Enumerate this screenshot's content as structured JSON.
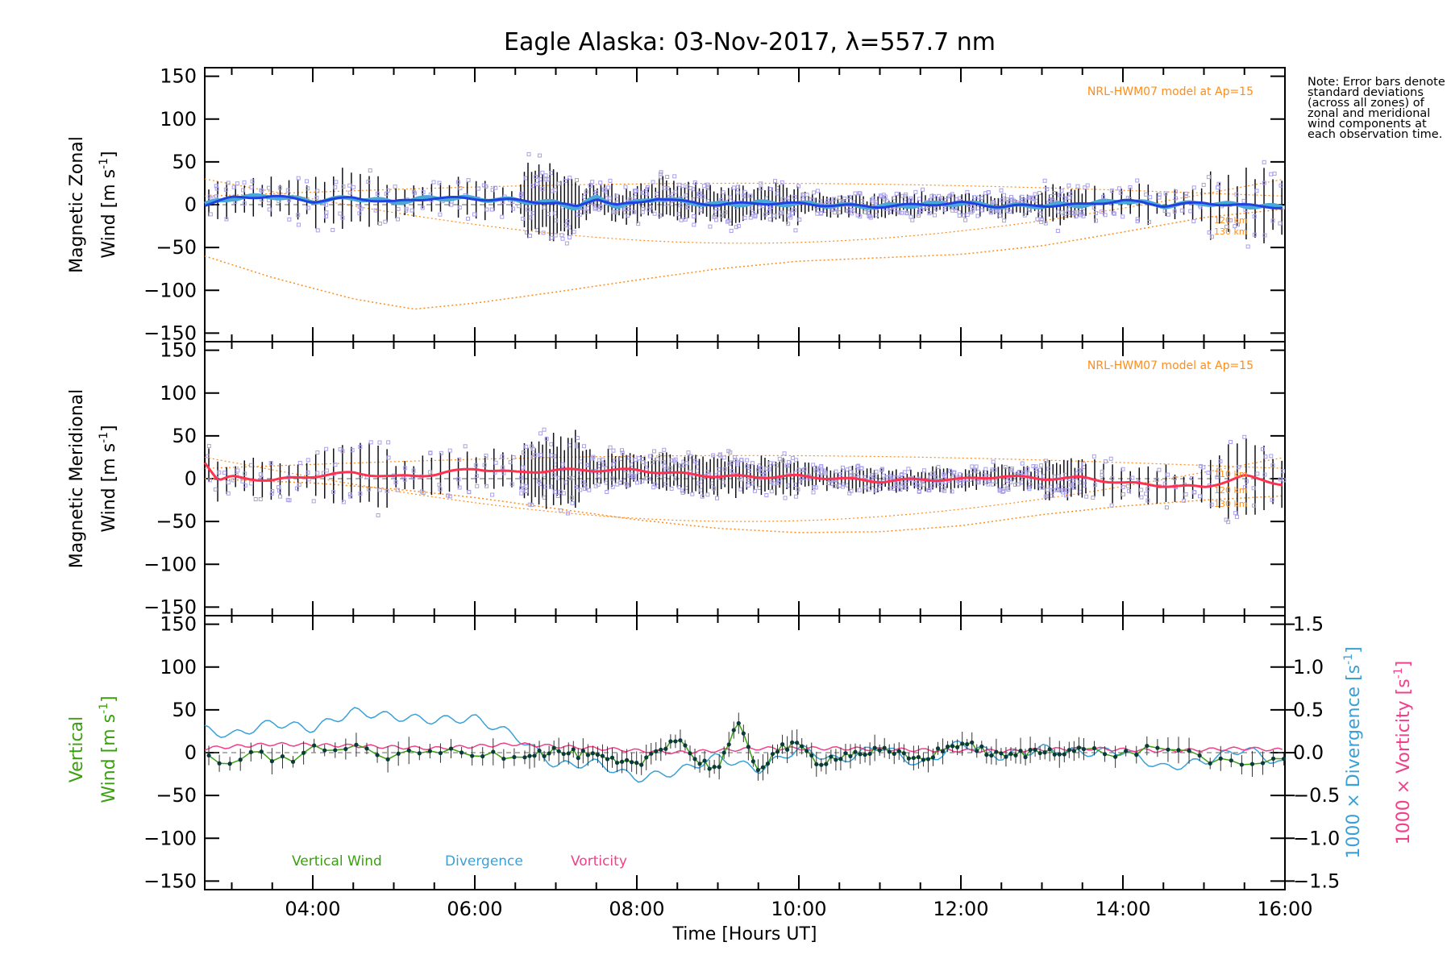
{
  "title": "Eagle Alaska: 03-Nov-2017, λ=557.7 nm",
  "note": "Note: Error bars denote standard deviations (across all zones) of zonal and meridional wind components at each observation time.",
  "xlabel": "Time [Hours UT]",
  "colors": {
    "zonal": "#2040e0",
    "zonal_zone": "#4aa8d8",
    "meridional": "#ff3050",
    "model": "#ff8c1a",
    "scatter": "#a9a0e8",
    "vertical": "#3aa010",
    "divergence": "#3aa0d8",
    "vorticity": "#f0408a",
    "errorbar": "#101018"
  },
  "panels": {
    "zonal": {
      "ylabel_line1": "Magnetic Zonal",
      "ylabel_line2": "Wind [m s",
      "ylabel_sup": "-1",
      "ylabel_end": "]",
      "model_label": "NRL-HWM07 model at Ap=15",
      "height_labels": [
        "120 km",
        "130 km"
      ]
    },
    "meridional": {
      "ylabel_line1": "Magnetic Meridional",
      "ylabel_line2": "Wind [m s",
      "ylabel_sup": "-1",
      "ylabel_end": "]",
      "model_label": "NRL-HWM07 model at Ap=15",
      "height_labels": [
        "110 km",
        "120 km",
        "130 km"
      ]
    },
    "vertical": {
      "ylabel_line1": "Vertical",
      "ylabel_line2": "Wind [m s",
      "ylabel_sup": "-1",
      "ylabel_end": "]",
      "right_label_div": "1000 × Divergence [s",
      "right_label_vort": "1000 × Vorticity [s",
      "right_sup": "-1",
      "right_end": "]",
      "legend": [
        "Vertical Wind",
        "Divergence",
        "Vorticity"
      ]
    }
  },
  "chart_data": [
    {
      "type": "line",
      "title": "Eagle Alaska: 03-Nov-2017, λ=557.7 nm",
      "ylabel": "Magnetic Zonal Wind [m s-1]",
      "ylim": [
        -160,
        160
      ],
      "xlim": [
        "02:40",
        "16:00"
      ],
      "x_ticks": [
        "04:00",
        "06:00",
        "08:00",
        "10:00",
        "12:00",
        "14:00",
        "16:00"
      ],
      "y_ticks": [
        150,
        100,
        50,
        0,
        -50,
        -100,
        -150
      ],
      "series": [
        {
          "name": "Magnetic Zonal Wind",
          "x": [
            "02:40",
            "03:00",
            "03:30",
            "04:00",
            "04:30",
            "05:00",
            "05:30",
            "06:00",
            "06:30",
            "07:00",
            "07:15",
            "07:30",
            "07:45",
            "08:00",
            "08:15",
            "08:30",
            "09:00",
            "09:30",
            "10:00",
            "10:30",
            "11:00",
            "11:30",
            "12:00",
            "12:30",
            "13:00",
            "13:30",
            "14:00",
            "14:30",
            "15:00",
            "15:30",
            "16:00"
          ],
          "values": [
            0,
            8,
            10,
            4,
            8,
            3,
            8,
            7,
            5,
            2,
            -3,
            8,
            -1,
            2,
            8,
            4,
            0,
            2,
            1,
            -1,
            -2,
            0,
            2,
            -2,
            -1,
            0,
            5,
            -1,
            2,
            -1,
            -3
          ]
        },
        {
          "name": "NRL-HWM07 model at Ap=15",
          "x": [
            "02:40",
            "03:30",
            "04:30",
            "05:15",
            "06:00",
            "07:00",
            "08:00",
            "09:00",
            "10:00",
            "11:00",
            "12:00",
            "13:00",
            "14:00",
            "15:00",
            "16:00"
          ],
          "values": [
            -60,
            -85,
            -110,
            -122,
            -115,
            -102,
            -88,
            -75,
            -66,
            -62,
            -58,
            -48,
            -32,
            -15,
            -5
          ]
        }
      ]
    },
    {
      "type": "line",
      "ylabel": "Magnetic Meridional Wind [m s-1]",
      "ylim": [
        -160,
        160
      ],
      "xlim": [
        "02:40",
        "16:00"
      ],
      "series": [
        {
          "name": "Magnetic Meridional Wind",
          "x": [
            "02:40",
            "02:50",
            "03:00",
            "03:30",
            "04:00",
            "04:30",
            "05:00",
            "05:30",
            "06:00",
            "06:30",
            "07:00",
            "07:30",
            "08:00",
            "08:30",
            "09:00",
            "09:30",
            "10:00",
            "10:30",
            "11:00",
            "11:30",
            "12:00",
            "12:30",
            "13:00",
            "13:30",
            "14:00",
            "14:30",
            "15:00",
            "15:30",
            "16:00"
          ],
          "values": [
            20,
            -3,
            2,
            -2,
            3,
            7,
            2,
            5,
            12,
            7,
            10,
            10,
            10,
            6,
            3,
            2,
            3,
            0,
            -3,
            -1,
            -1,
            3,
            0,
            1,
            -5,
            -8,
            -10,
            3,
            -7
          ]
        },
        {
          "name": "NRL-HWM07 model at Ap=15",
          "x": [
            "02:40",
            "04:00",
            "05:00",
            "06:00",
            "07:00",
            "08:00",
            "09:00",
            "10:00",
            "11:00",
            "12:00",
            "13:00",
            "14:00",
            "15:00",
            "16:00"
          ],
          "values": [
            0,
            -5,
            -12,
            -22,
            -35,
            -48,
            -58,
            -63,
            -62,
            -55,
            -42,
            -32,
            -25,
            -20
          ]
        }
      ]
    },
    {
      "type": "line",
      "ylabel": "Vertical Wind [m s-1]",
      "ylim": [
        -160,
        160
      ],
      "y2label": "1000 × Divergence [s-1] / 1000 × Vorticity [s-1]",
      "y2lim": [
        -1.5,
        1.5
      ],
      "y2_ticks": [
        1.5,
        1.0,
        0.5,
        0.0,
        -0.5,
        -1.0,
        -1.5
      ],
      "xlim": [
        "02:40",
        "16:00"
      ],
      "series": [
        {
          "name": "Vertical Wind",
          "x": [
            "02:40",
            "02:55",
            "03:10",
            "03:30",
            "03:45",
            "04:00",
            "04:30",
            "05:00",
            "05:30",
            "06:00",
            "06:30",
            "07:00",
            "07:30",
            "07:45",
            "08:00",
            "08:15",
            "08:30",
            "08:45",
            "09:00",
            "09:15",
            "09:30",
            "09:45",
            "10:00",
            "10:15",
            "10:30",
            "11:00",
            "11:30",
            "12:00",
            "12:30",
            "13:00",
            "13:30",
            "14:00",
            "14:30",
            "15:00",
            "15:30",
            "16:00"
          ],
          "values": [
            -5,
            -18,
            0,
            -6,
            -12,
            8,
            5,
            -5,
            2,
            0,
            -3,
            2,
            -5,
            -12,
            -15,
            3,
            18,
            -10,
            -18,
            32,
            -20,
            5,
            8,
            -12,
            -3,
            2,
            -8,
            12,
            -5,
            2,
            3,
            -2,
            8,
            -6,
            -18,
            -5
          ]
        },
        {
          "name": "Divergence",
          "axis": "right",
          "x": [
            "02:40",
            "03:00",
            "03:30",
            "04:00",
            "04:30",
            "05:00",
            "05:30",
            "06:00",
            "06:30",
            "07:00",
            "07:30",
            "08:00",
            "08:30",
            "09:00",
            "09:30",
            "10:00",
            "10:30",
            "11:00",
            "11:30",
            "12:00",
            "12:30",
            "13:00",
            "13:30",
            "14:00",
            "14:30",
            "15:00",
            "15:30",
            "16:00"
          ],
          "values": [
            0.27,
            0.2,
            0.35,
            0.28,
            0.48,
            0.42,
            0.38,
            0.4,
            0.2,
            -0.15,
            -0.12,
            -0.3,
            -0.22,
            -0.05,
            -0.2,
            0.05,
            -0.1,
            0.08,
            -0.15,
            0.12,
            -0.05,
            0.05,
            0.0,
            0.02,
            -0.18,
            -0.1,
            0.05,
            -0.15
          ]
        },
        {
          "name": "Vorticity",
          "axis": "right",
          "x": [
            "02:40",
            "03:30",
            "04:30",
            "05:30",
            "06:30",
            "07:30",
            "08:30",
            "09:30",
            "10:30",
            "11:30",
            "12:30",
            "13:30",
            "14:30",
            "15:30",
            "16:00"
          ],
          "values": [
            0.05,
            0.1,
            0.08,
            0.05,
            0.1,
            0.05,
            0.0,
            0.05,
            0.05,
            0.03,
            0.02,
            0.05,
            0.02,
            0.05,
            0.03
          ]
        }
      ]
    }
  ]
}
